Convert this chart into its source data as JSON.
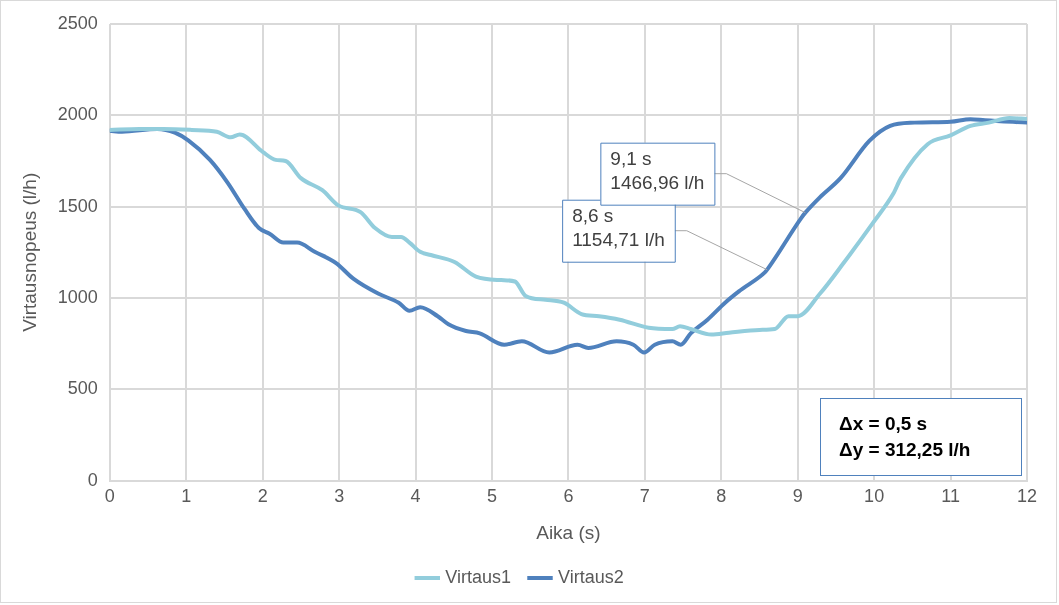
{
  "chart_data": {
    "type": "line",
    "xlabel": "Aika (s)",
    "ylabel": "Virtausnopeus (l/h)",
    "xlim": [
      0,
      12
    ],
    "xticks": [
      0,
      1,
      2,
      3,
      4,
      5,
      6,
      7,
      8,
      9,
      10,
      11,
      12
    ],
    "ylim": [
      0,
      2500
    ],
    "yticks": [
      0,
      500,
      1000,
      1500,
      2000,
      2500
    ],
    "grid": true,
    "legend": "bottom",
    "marker": "none",
    "line_style": "solid",
    "series": [
      {
        "name": "Virtaus1",
        "color": "#92cddc",
        "x": [
          0,
          0.39,
          0.7,
          1.07,
          1.4,
          1.58,
          1.7,
          2.0,
          2.17,
          2.3,
          2.5,
          2.78,
          2.99,
          3.28,
          3.47,
          3.69,
          3.81,
          3.92,
          4.06,
          4.2,
          4.51,
          4.79,
          5.12,
          5.3,
          5.44,
          5.7,
          5.94,
          6.17,
          6.4,
          6.67,
          7.05,
          7.36,
          7.46,
          7.6,
          7.87,
          8.1,
          8.5,
          8.7,
          8.88,
          9.0,
          9.29,
          9.6,
          9.98,
          10.25,
          10.35,
          10.7,
          11.0,
          11.26,
          11.5,
          11.77,
          12
        ],
        "values": [
          1920,
          1925,
          1925,
          1920,
          1910,
          1880,
          1895,
          1800,
          1756,
          1750,
          1656,
          1590,
          1507,
          1470,
          1383,
          1334,
          1334,
          1303,
          1253,
          1235,
          1197,
          1117,
          1098,
          1090,
          1011,
          990,
          974,
          912,
          900,
          881,
          837,
          830,
          845,
          830,
          800,
          810,
          825,
          830,
          900,
          900,
          1023,
          1191,
          1408,
          1570,
          1656,
          1842,
          1890,
          1942,
          1960,
          1985,
          1980
        ]
      },
      {
        "name": "Virtaus2",
        "color": "#4f81bd",
        "x": [
          0,
          0.16,
          0.62,
          0.85,
          1.03,
          1.31,
          1.54,
          1.76,
          1.95,
          2.09,
          2.27,
          2.45,
          2.68,
          2.96,
          3.19,
          3.51,
          3.78,
          3.92,
          4.06,
          4.29,
          4.43,
          4.66,
          4.84,
          5.16,
          5.39,
          5.75,
          6.12,
          6.26,
          6.63,
          6.85,
          6.99,
          7.13,
          7.36,
          7.47,
          7.6,
          7.82,
          8.05,
          8.23,
          8.57,
          8.6,
          9.05,
          9.1,
          9.29,
          9.56,
          9.94,
          10.21,
          10.53,
          11.0,
          11.26,
          11.45,
          12
        ],
        "values": [
          1915,
          1910,
          1925,
          1905,
          1861,
          1756,
          1632,
          1489,
          1383,
          1352,
          1303,
          1303,
          1253,
          1191,
          1104,
          1024,
          974,
          930,
          949,
          900,
          856,
          819,
          806,
          744,
          763,
          701,
          744,
          726,
          763,
          744,
          701,
          744,
          763,
          744,
          806,
          881,
          974,
          1036,
          1140,
          1155,
          1440,
          1467,
          1551,
          1656,
          1861,
          1942,
          1960,
          1965,
          1979,
          1973,
          1960
        ]
      }
    ],
    "annotations": [
      {
        "text": "8,6 s\n1154,71 l/h",
        "x": 8.6,
        "y": 1154.71
      },
      {
        "text": "9,1 s\n1466,96 l/h",
        "x": 9.1,
        "y": 1466.96
      },
      "Δx = 0,5 s\nΔy = 312,25 l/h"
    ]
  }
}
